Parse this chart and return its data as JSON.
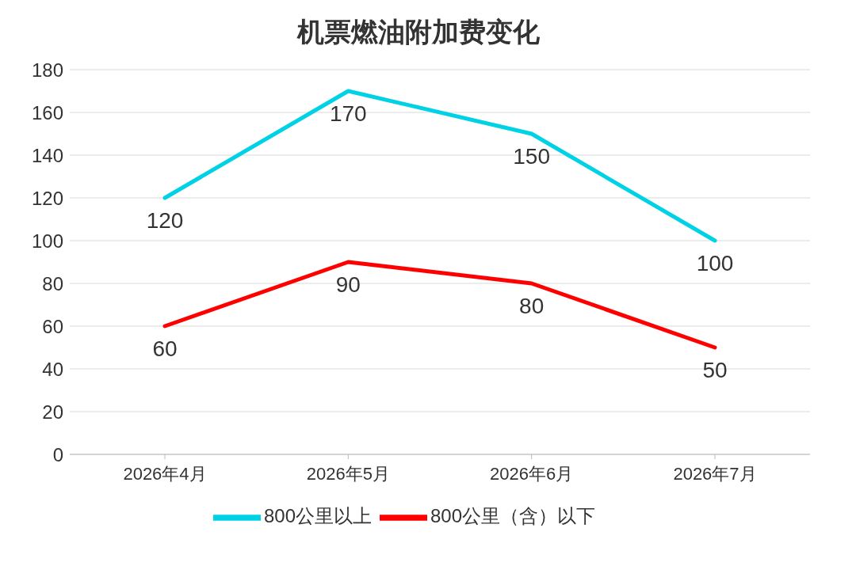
{
  "chart_data": {
    "type": "line",
    "title": "机票燃油附加费变化",
    "categories": [
      "2026年4月",
      "2026年5月",
      "2026年6月",
      "2026年7月"
    ],
    "series": [
      {
        "name": "800公里以上",
        "color": "#00d2e6",
        "values": [
          120,
          170,
          150,
          100
        ]
      },
      {
        "name": "800公里（含）以下",
        "color": "#ff0000",
        "values": [
          60,
          90,
          80,
          50
        ]
      }
    ],
    "ylim": [
      0,
      180
    ],
    "yticks": [
      0,
      20,
      40,
      60,
      80,
      100,
      120,
      140,
      160,
      180
    ],
    "grid": "y",
    "legend": "bottom",
    "data_labels": true,
    "marker": "none",
    "line_style": "solid"
  }
}
